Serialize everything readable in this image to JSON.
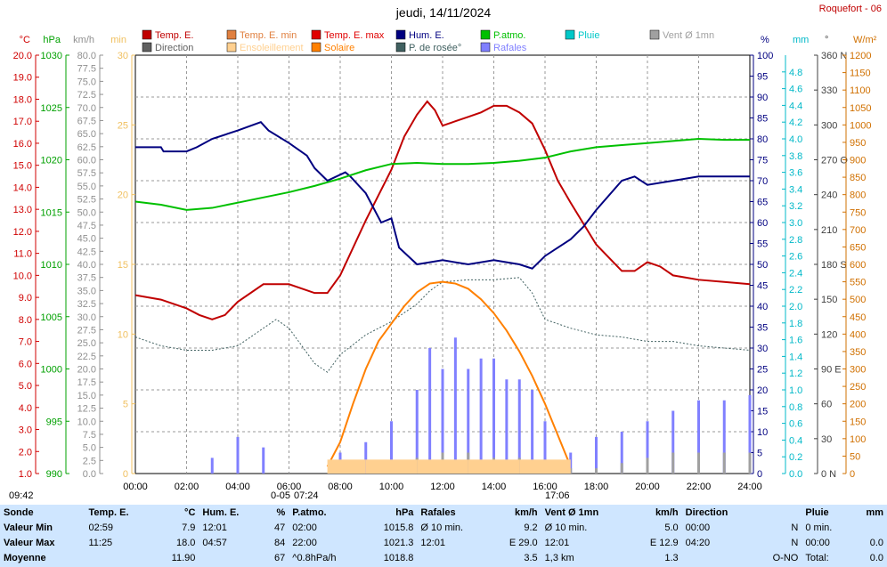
{
  "header": {
    "title": "jeudi, 14/11/2024",
    "location": "Roquefort - 06"
  },
  "legend": [
    {
      "label": "Temp. E.",
      "color": "#c00000"
    },
    {
      "label": "Temp. E. min",
      "color": "#e08040"
    },
    {
      "label": "Temp. E. max",
      "color": "#e00000"
    },
    {
      "label": "Hum. E.",
      "color": "#000080"
    },
    {
      "label": "P.atmo.",
      "color": "#00c000"
    },
    {
      "label": "Pluie",
      "color": "#00c8c8"
    },
    {
      "label": "Vent Ø 1mn",
      "color": "#a0a0a0"
    },
    {
      "label": "Direction",
      "color": "#606060"
    },
    {
      "label": "Ensoleillement",
      "color": "#ffd090"
    },
    {
      "label": "Solaire",
      "color": "#ff8000"
    },
    {
      "label": "P. de rosée°",
      "color": "#406060"
    },
    {
      "label": "Rafales",
      "color": "#8080ff"
    }
  ],
  "axes_units": {
    "temp": "°C",
    "pres": "hPa",
    "wind": "km/h",
    "min": "min",
    "hum": "%",
    "rain": "mm",
    "dir": "°",
    "solar": "W/m²"
  },
  "markers": {
    "start": "09:42",
    "sunrise": "07:24",
    "sunset": "17:06",
    "tick_moon": "0-05"
  },
  "chart_data": {
    "type": "line",
    "x_label": "time (h)",
    "x_ticks": [
      "00:00",
      "02:00",
      "04:00",
      "06:00",
      "08:00",
      "10:00",
      "12:00",
      "14:00",
      "16:00",
      "18:00",
      "20:00",
      "22:00",
      "24:00"
    ],
    "axes": {
      "temp": {
        "unit": "°C",
        "min": 1.0,
        "max": 20.0,
        "ticks": [
          "1.0",
          "2.0",
          "3.0",
          "4.0",
          "5.0",
          "6.0",
          "7.0",
          "8.0",
          "9.0",
          "10.0",
          "11.0",
          "12.0",
          "13.0",
          "14.0",
          "15.0",
          "16.0",
          "17.0",
          "18.0",
          "19.0",
          "20.0"
        ]
      },
      "pres": {
        "unit": "hPa",
        "min": 990,
        "max": 1030,
        "ticks": [
          "990",
          "995",
          "1000",
          "1005",
          "1010",
          "1015",
          "1020",
          "1025",
          "1030"
        ]
      },
      "wind": {
        "unit": "km/h",
        "min": 0,
        "max": 80,
        "ticks": [
          "0.0",
          "2.5",
          "5.0",
          "7.5",
          "10.0",
          "12.5",
          "15.0",
          "17.5",
          "20.0",
          "22.5",
          "25.0",
          "27.5",
          "30.0",
          "32.5",
          "35.0",
          "37.5",
          "40.0",
          "42.5",
          "45.0",
          "47.5",
          "50.0",
          "52.5",
          "55.0",
          "57.5",
          "60.0",
          "62.5",
          "65.0",
          "67.5",
          "70.0",
          "72.5",
          "75.0",
          "77.5",
          "80.0"
        ]
      },
      "sun_min": {
        "unit": "min",
        "min": 0,
        "max": 30,
        "ticks": [
          "0",
          "5",
          "10",
          "15",
          "20",
          "25",
          "30"
        ]
      },
      "hum": {
        "unit": "%",
        "min": 0,
        "max": 100,
        "ticks": [
          "0",
          "5",
          "10",
          "15",
          "20",
          "25",
          "30",
          "35",
          "40",
          "45",
          "50",
          "55",
          "60",
          "65",
          "70",
          "75",
          "80",
          "85",
          "90",
          "95",
          "100"
        ]
      },
      "rain": {
        "unit": "mm",
        "min": 0,
        "max": 5,
        "ticks": [
          "0.0",
          "0.2",
          "0.4",
          "0.6",
          "0.8",
          "1.0",
          "1.2",
          "1.4",
          "1.6",
          "1.8",
          "2.0",
          "2.2",
          "2.4",
          "2.6",
          "2.8",
          "3.0",
          "3.2",
          "3.4",
          "3.6",
          "3.8",
          "4.0",
          "4.2",
          "4.4",
          "4.6",
          "4.8"
        ]
      },
      "dir": {
        "unit": "°",
        "min": 0,
        "max": 360,
        "ticks": [
          "0 N",
          "30",
          "60",
          "90 E",
          "120",
          "150",
          "180 S",
          "210",
          "240",
          "270 O",
          "300",
          "330",
          "360 N"
        ]
      },
      "solar": {
        "unit": "W/m²",
        "min": 0,
        "max": 1200,
        "ticks": [
          "0",
          "50",
          "100",
          "150",
          "200",
          "250",
          "300",
          "350",
          "400",
          "450",
          "500",
          "550",
          "600",
          "650",
          "700",
          "750",
          "800",
          "850",
          "900",
          "950",
          "1000",
          "1050",
          "1100",
          "1150",
          "1200"
        ]
      }
    },
    "series": [
      {
        "name": "Temp. E.",
        "axis": "temp",
        "color": "#c00000",
        "x": [
          0,
          1,
          2,
          2.5,
          3,
          3.5,
          4,
          5,
          6,
          7,
          7.5,
          8,
          9,
          10,
          10.5,
          11,
          11.4,
          11.7,
          12,
          12.5,
          13,
          13.5,
          14,
          14.5,
          15,
          15.5,
          16,
          16.5,
          17,
          18,
          19,
          19.5,
          20,
          20.5,
          21,
          22,
          23,
          24
        ],
        "y": [
          9.1,
          8.9,
          8.5,
          8.2,
          8.0,
          8.2,
          8.8,
          9.6,
          9.6,
          9.2,
          9.2,
          10.0,
          12.5,
          14.8,
          16.3,
          17.3,
          17.9,
          17.5,
          16.8,
          17.0,
          17.2,
          17.4,
          17.7,
          17.7,
          17.4,
          16.9,
          15.7,
          14.3,
          13.3,
          11.4,
          10.2,
          10.2,
          10.6,
          10.4,
          10.0,
          9.8,
          9.7,
          9.6
        ]
      },
      {
        "name": "Hum. E.",
        "axis": "hum",
        "color": "#000080",
        "x": [
          0,
          1,
          1.1,
          2,
          2.4,
          3,
          4,
          4.9,
          5.2,
          6,
          6.7,
          7,
          7.5,
          8.2,
          8.4,
          9,
          9.6,
          10,
          10.3,
          11,
          12,
          13,
          14,
          15,
          15.5,
          16,
          16.5,
          17,
          17.5,
          18,
          19,
          19.5,
          20,
          21,
          22,
          23,
          24
        ],
        "y": [
          78,
          78,
          77,
          77,
          78,
          80,
          82,
          84,
          82,
          79,
          76,
          73,
          70,
          72,
          71,
          67,
          60,
          61,
          54,
          50,
          51,
          50,
          51,
          50,
          49,
          52,
          54,
          56,
          59,
          63,
          70,
          71,
          69,
          70,
          71,
          71,
          71
        ]
      },
      {
        "name": "P.atmo.",
        "axis": "pres",
        "color": "#00c000",
        "x": [
          0,
          1,
          2,
          3,
          4,
          5,
          6,
          7,
          8,
          9,
          10,
          11,
          12,
          13,
          14,
          15,
          16,
          17,
          18,
          19,
          20,
          21,
          22,
          23,
          24
        ],
        "y": [
          1016.0,
          1015.7,
          1015.2,
          1015.4,
          1015.9,
          1016.4,
          1016.9,
          1017.5,
          1018.2,
          1019.0,
          1019.6,
          1019.7,
          1019.6,
          1019.6,
          1019.7,
          1019.9,
          1020.2,
          1020.8,
          1021.2,
          1021.4,
          1021.6,
          1021.8,
          1022.0,
          1021.9,
          1021.9
        ]
      },
      {
        "name": "P. de rosée°",
        "axis": "temp",
        "color": "#406060",
        "x": [
          0,
          1,
          2,
          3,
          4,
          5,
          5.5,
          6,
          7,
          7.5,
          8,
          9,
          10,
          11,
          11.5,
          12,
          13,
          14,
          15,
          15.5,
          16,
          17,
          18,
          19,
          20,
          21,
          22,
          23,
          24
        ],
        "y": [
          7.2,
          6.8,
          6.6,
          6.6,
          6.8,
          7.6,
          8.0,
          7.6,
          6.0,
          5.6,
          6.4,
          7.3,
          7.9,
          8.7,
          9.3,
          9.7,
          9.8,
          9.8,
          9.9,
          9.2,
          8.0,
          7.6,
          7.3,
          7.2,
          7.0,
          7.0,
          6.8,
          6.7,
          6.6
        ]
      },
      {
        "name": "Solaire",
        "axis": "solar",
        "color": "#ff8000",
        "x": [
          7.5,
          8,
          8.5,
          9,
          9.5,
          10,
          10.5,
          11,
          11.5,
          12,
          12.5,
          13,
          13.5,
          14,
          14.5,
          15,
          15.5,
          16,
          16.5,
          17
        ],
        "y": [
          20,
          90,
          200,
          300,
          380,
          430,
          480,
          520,
          545,
          550,
          545,
          530,
          500,
          460,
          410,
          350,
          280,
          200,
          110,
          20
        ]
      },
      {
        "name": "Rafales",
        "axis": "wind",
        "color": "#8080ff",
        "x": [
          3,
          4,
          5,
          7.5,
          8,
          9,
          10,
          11,
          11.5,
          12,
          12.5,
          13,
          13.5,
          14,
          14.5,
          15,
          15.5,
          16,
          17,
          18,
          19,
          20,
          21,
          22,
          23,
          24
        ],
        "y": [
          3,
          7,
          5,
          0,
          4,
          6,
          10,
          16,
          24,
          20,
          26,
          20,
          22,
          22,
          18,
          18,
          16,
          10,
          4,
          7,
          8,
          10,
          12,
          14,
          14,
          15
        ]
      },
      {
        "name": "Vent Ø 1mn",
        "axis": "wind",
        "color": "#a0a0a0",
        "x": [
          8,
          10,
          11,
          12,
          13,
          14,
          15,
          16,
          17,
          18,
          19,
          20,
          21,
          22,
          23,
          24
        ],
        "y": [
          0,
          1,
          3,
          4,
          4,
          3,
          3,
          2,
          1,
          1,
          2,
          3,
          4,
          4,
          4,
          4
        ]
      },
      {
        "name": "Ensoleillement",
        "axis": "sun_min",
        "color": "#ffd090",
        "x": [
          7.5,
          8,
          9,
          10,
          11,
          12,
          13,
          14,
          15,
          16,
          17
        ],
        "y": [
          1,
          1,
          1,
          1,
          1,
          1,
          1,
          1,
          1,
          1,
          0
        ]
      }
    ]
  },
  "stats": {
    "headers": [
      "Sonde",
      "Temp. E.",
      "°C",
      "Hum. E.",
      "%",
      "P.atmo.",
      "hPa",
      "Rafales",
      "km/h",
      "Vent Ø 1mn",
      "km/h",
      "Direction",
      "",
      "Pluie",
      "mm"
    ],
    "rows": [
      [
        "Valeur Min",
        "02:59",
        "7.9",
        "12:01",
        "47",
        "02:00",
        "1015.8",
        "Ø 10 min.",
        "9.2",
        "Ø 10 min.",
        "5.0",
        "00:00",
        "N",
        "0 min.",
        ""
      ],
      [
        "Valeur Max",
        "11:25",
        "18.0",
        "04:57",
        "84",
        "22:00",
        "1021.3",
        "12:01",
        "E 29.0",
        "12:01",
        "E 12.9",
        "04:20",
        "N",
        "00:00",
        "0.0"
      ],
      [
        "Moyenne",
        "",
        "11.90",
        "",
        "67",
        "^0.8hPa/h",
        "1018.8",
        "",
        "3.5",
        "1,3 km",
        "1.3",
        "",
        "O-NO",
        "Total:",
        "0.0"
      ]
    ]
  }
}
